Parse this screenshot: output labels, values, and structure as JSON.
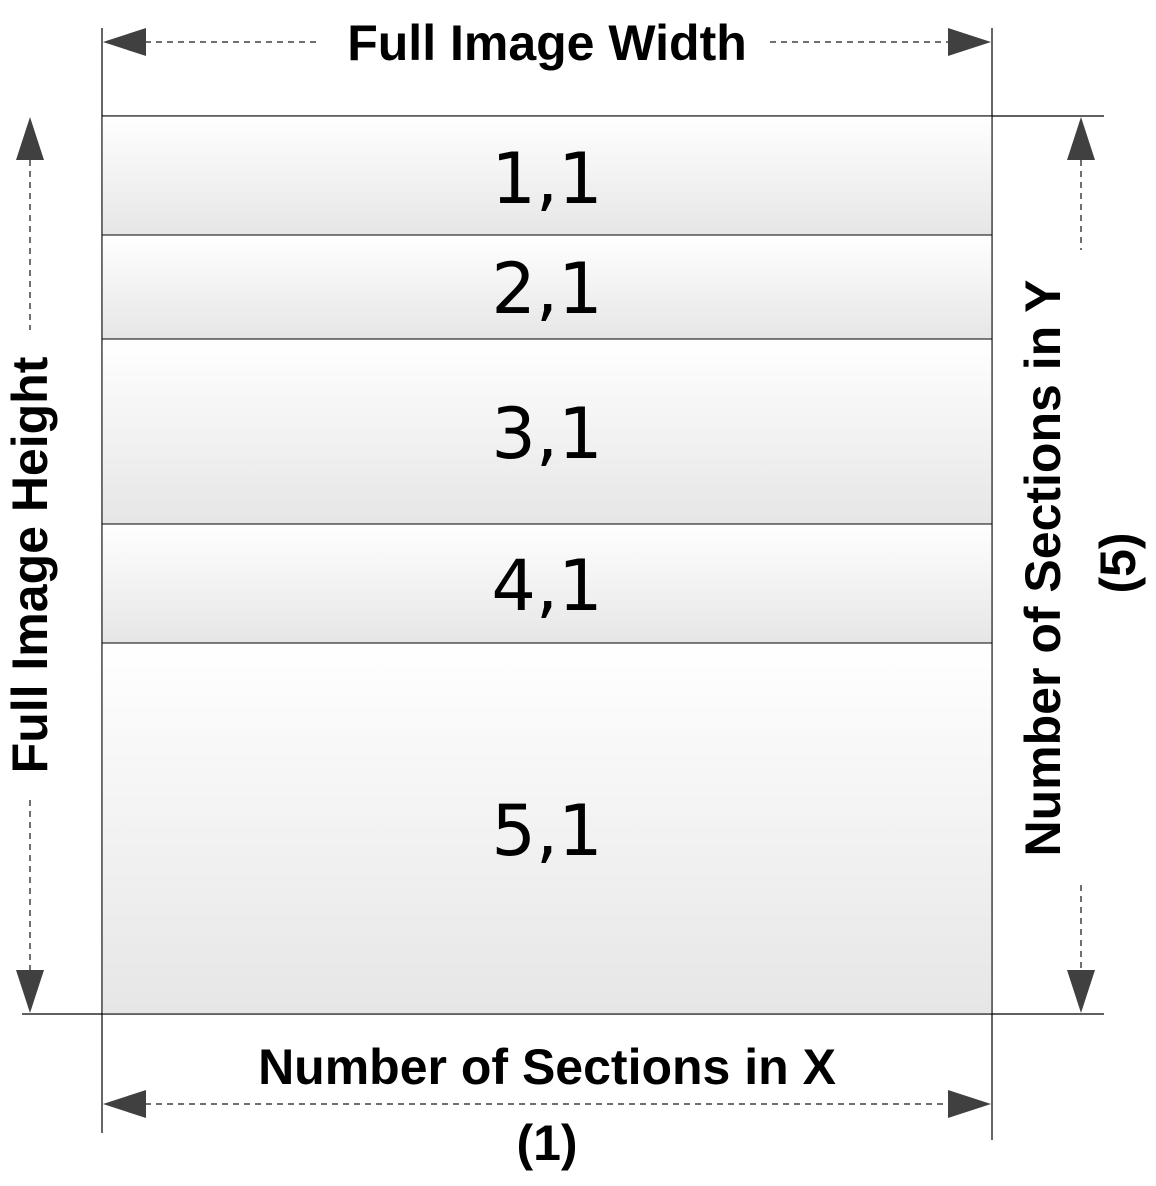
{
  "diagram": {
    "title_top": "Full Image Width",
    "left_label": "Full Image Height",
    "right_label_line1": "Number of Sections in Y",
    "right_label_line2": "(5)",
    "bottom_label_line1": "Number of Sections in X",
    "bottom_label_line2": "(1)",
    "sections": [
      {
        "label": "1,1"
      },
      {
        "label": "2,1"
      },
      {
        "label": "3,1"
      },
      {
        "label": "4,1"
      },
      {
        "label": "5,1"
      }
    ],
    "colors": {
      "line": "#000000",
      "arrow": "#404040",
      "cell_top": "#ffffff",
      "cell_bottom": "#e6e6e6"
    }
  }
}
